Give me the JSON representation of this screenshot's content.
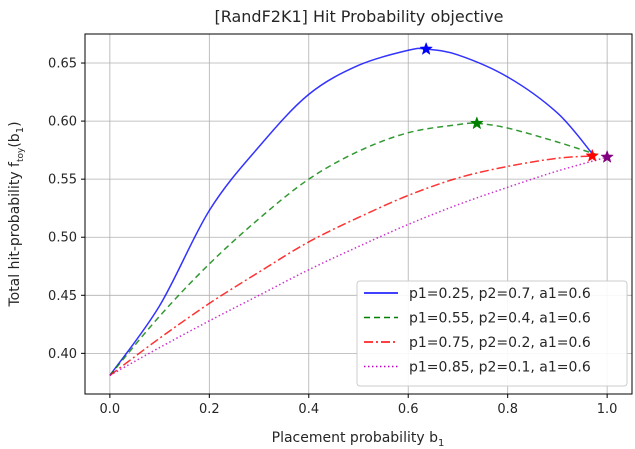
{
  "chart_data": {
    "type": "line",
    "title": "[RandF2K1] Hit Probability objective",
    "xlabel": "Placement probability b",
    "xlabel_sub": "1",
    "ylabel": "Total hit-probability f",
    "ylabel_sub1": "toy",
    "ylabel_paren_open": "(b",
    "ylabel_sub2": "1",
    "ylabel_paren_close": ")",
    "xlim": [
      -0.05,
      1.05
    ],
    "ylim": [
      0.365,
      0.675
    ],
    "xticks": [
      "0.0",
      "0.2",
      "0.4",
      "0.6",
      "0.8",
      "1.0"
    ],
    "xtick_values": [
      0.0,
      0.2,
      0.4,
      0.6,
      0.8,
      1.0
    ],
    "yticks": [
      "0.40",
      "0.45",
      "0.50",
      "0.55",
      "0.60",
      "0.65"
    ],
    "ytick_values": [
      0.4,
      0.45,
      0.5,
      0.55,
      0.6,
      0.65
    ],
    "grid": true,
    "legend_position": "lower-right",
    "series": [
      {
        "name": "p1=0.25, p2=0.7, a1=0.6",
        "color": "#0000ff",
        "dash": "solid",
        "marker_color": "#0000ff",
        "x": [
          0.0,
          0.1,
          0.2,
          0.3,
          0.4,
          0.5,
          0.6,
          0.636,
          0.7,
          0.8,
          0.9,
          0.97
        ],
        "y": [
          0.381,
          0.441,
          0.523,
          0.578,
          0.623,
          0.648,
          0.661,
          0.662,
          0.657,
          0.638,
          0.607,
          0.572
        ],
        "peak": {
          "x": 0.636,
          "y": 0.662
        }
      },
      {
        "name": "p1=0.55, p2=0.4, a1=0.6",
        "color": "#008000",
        "dash": "6,4",
        "marker_color": "#008000",
        "x": [
          0.0,
          0.1,
          0.2,
          0.3,
          0.4,
          0.5,
          0.6,
          0.7,
          0.738,
          0.8,
          0.9,
          0.98
        ],
        "y": [
          0.381,
          0.432,
          0.477,
          0.516,
          0.55,
          0.574,
          0.59,
          0.597,
          0.598,
          0.594,
          0.582,
          0.571
        ],
        "peak": {
          "x": 0.738,
          "y": 0.598
        }
      },
      {
        "name": "p1=0.75, p2=0.2, a1=0.6",
        "color": "#ff0000",
        "dash": "9,3,2,3",
        "marker_color": "#ff0000",
        "x": [
          0.0,
          0.1,
          0.2,
          0.3,
          0.4,
          0.5,
          0.6,
          0.7,
          0.8,
          0.9,
          0.97
        ],
        "y": [
          0.381,
          0.413,
          0.443,
          0.47,
          0.496,
          0.517,
          0.536,
          0.551,
          0.561,
          0.568,
          0.57
        ],
        "peak": {
          "x": 0.97,
          "y": 0.57
        }
      },
      {
        "name": "p1=0.85, p2=0.1, a1=0.6",
        "color": "#bf00bf",
        "dash": "1.5,2.5",
        "marker_color": "#800080",
        "x": [
          0.0,
          0.1,
          0.2,
          0.3,
          0.4,
          0.5,
          0.6,
          0.7,
          0.8,
          0.9,
          1.0
        ],
        "y": [
          0.381,
          0.405,
          0.428,
          0.45,
          0.472,
          0.492,
          0.511,
          0.528,
          0.543,
          0.557,
          0.569
        ],
        "peak": {
          "x": 1.0,
          "y": 0.569
        }
      }
    ]
  }
}
